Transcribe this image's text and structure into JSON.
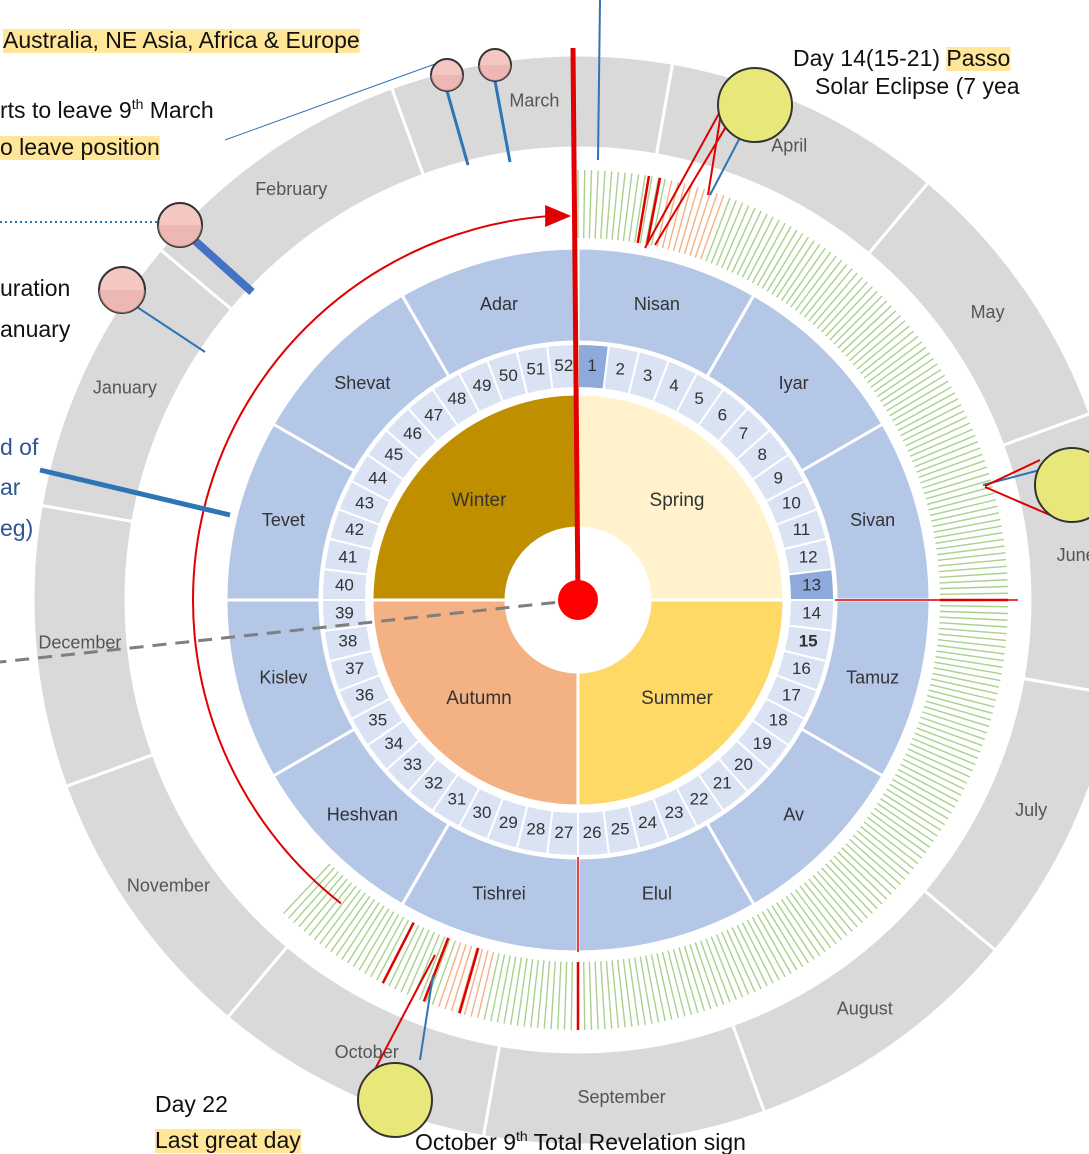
{
  "months": [
    "March",
    "April",
    "May",
    "June",
    "July",
    "August",
    "September",
    "October",
    "November",
    "December",
    "January",
    "February"
  ],
  "hebrew_months": [
    "Nisan",
    "Iyar",
    "Sivan",
    "Tamuz",
    "Av",
    "Elul",
    "Tishrei",
    "Heshvan",
    "Kislev",
    "Tevet",
    "Shevat",
    "Adar"
  ],
  "weeks": [
    1,
    2,
    3,
    4,
    5,
    6,
    7,
    8,
    9,
    10,
    11,
    12,
    13,
    14,
    15,
    16,
    17,
    18,
    19,
    20,
    21,
    22,
    23,
    24,
    25,
    26,
    27,
    28,
    29,
    30,
    31,
    32,
    33,
    34,
    35,
    36,
    37,
    38,
    39,
    40,
    41,
    42,
    43,
    44,
    45,
    46,
    47,
    48,
    49,
    50,
    51,
    52
  ],
  "seasons": [
    "Spring",
    "Summer",
    "Autumn",
    "Winter"
  ],
  "annotations": [
    {
      "parts": [
        {
          "text": "Australia, NE Asia, Africa & Europe",
          "highlight": true
        }
      ]
    },
    {
      "parts": [
        {
          "text": "Day 14(15-21) "
        },
        {
          "text": "Passo",
          "highlight": true
        }
      ]
    },
    {
      "parts": [
        {
          "text": "Solar Eclipse (7 yea"
        }
      ]
    },
    {
      "parts": [
        {
          "text": "rts to leave 9"
        },
        {
          "text": "th",
          "sup": true
        },
        {
          "text": " March"
        }
      ]
    },
    {
      "parts": [
        {
          "text": "o leave position",
          "highlight": true
        }
      ]
    },
    {
      "parts": [
        {
          "text": "uration"
        }
      ]
    },
    {
      "parts": [
        {
          "text": "anuary"
        }
      ]
    },
    {
      "parts": [
        {
          "text": "d of",
          "blue": true
        }
      ]
    },
    {
      "parts": [
        {
          "text": "ar",
          "blue": true
        }
      ]
    },
    {
      "parts": [
        {
          "text": "eg)",
          "blue": true
        }
      ]
    },
    {
      "parts": [
        {
          "text": "Day 22"
        }
      ]
    },
    {
      "parts": [
        {
          "text": "Last great day",
          "highlight": true
        }
      ]
    },
    {
      "parts": [
        {
          "text": "October 9"
        },
        {
          "text": "th",
          "sup": true
        },
        {
          "text": " Total Revelation sign"
        }
      ]
    }
  ]
}
